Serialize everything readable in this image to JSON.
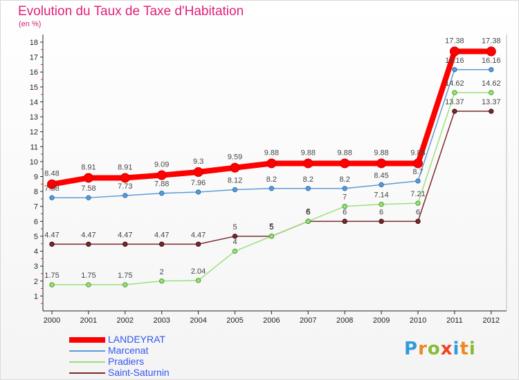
{
  "header": {
    "title": "Evolution du Taux de Taxe d'Habitation",
    "subtitle": "(en %)"
  },
  "chart_data": {
    "type": "line",
    "x": [
      "2000",
      "2001",
      "2002",
      "2003",
      "2004",
      "2005",
      "2006",
      "2007",
      "2008",
      "2009",
      "2010",
      "2011",
      "2012"
    ],
    "ylim": [
      0,
      18
    ],
    "yticks": [
      1,
      2,
      3,
      4,
      5,
      6,
      7,
      8,
      9,
      10,
      11,
      12,
      13,
      14,
      15,
      16,
      17,
      18
    ],
    "grid": false,
    "legend_position": "bottom-left",
    "series": [
      {
        "name": "LANDEYRAT",
        "color": "#ff0000",
        "values": [
          8.48,
          8.91,
          8.91,
          9.09,
          9.3,
          9.59,
          9.88,
          9.88,
          9.88,
          9.88,
          9.88,
          17.38,
          17.38
        ],
        "labels": [
          "8.48",
          "8.91",
          "8.91",
          "9.09",
          "9.3",
          "9.59",
          "9.88",
          "9.88",
          "9.88",
          "9.88",
          "9.88",
          "17.38",
          "17.38"
        ]
      },
      {
        "name": "Marcenat",
        "color": "#5b9bd5",
        "values": [
          7.58,
          7.58,
          7.73,
          7.88,
          7.96,
          8.12,
          8.2,
          8.2,
          8.2,
          8.45,
          8.7,
          16.16,
          16.16
        ],
        "labels": [
          "7.58",
          "7.58",
          "7.73",
          "7.88",
          "7.96",
          "8.12",
          "8.2",
          "8.2",
          "8.2",
          "8.45",
          "8.7",
          "16.16",
          "16.16"
        ]
      },
      {
        "name": "Pradiers",
        "color": "#9be07a",
        "values": [
          1.75,
          1.75,
          1.75,
          2,
          2.04,
          4,
          5,
          6,
          7,
          7.14,
          7.21,
          14.62,
          14.62
        ],
        "labels": [
          "1.75",
          "1.75",
          "1.75",
          "2",
          "2.04",
          "4",
          "5",
          "6",
          "7",
          "7.14",
          "7.21",
          "14.62",
          "14.62"
        ]
      },
      {
        "name": "Saint-Saturnin",
        "color": "#7a2a2a",
        "values": [
          4.47,
          4.47,
          4.47,
          4.47,
          4.47,
          5,
          5,
          6,
          6,
          6,
          6,
          13.37,
          13.37
        ],
        "labels": [
          "4.47",
          "4.47",
          "4.47",
          "4.47",
          "4.47",
          "5",
          "5",
          "6",
          "6",
          "6",
          "6",
          "13.37",
          "13.37"
        ]
      }
    ]
  },
  "logo": {
    "text": "Proxiti"
  }
}
